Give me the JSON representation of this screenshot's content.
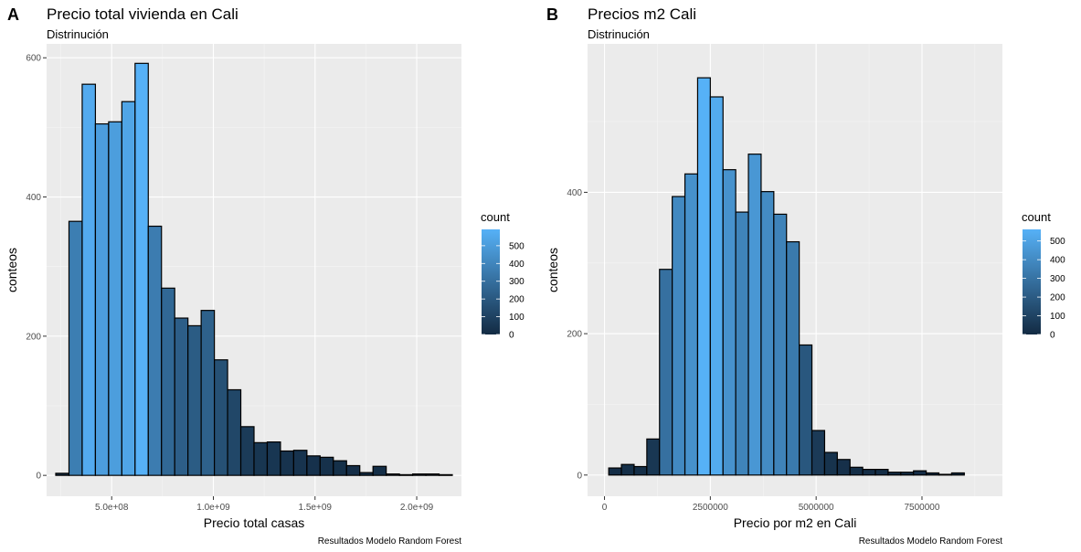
{
  "chart_data": [
    {
      "type": "histogram",
      "panel_label": "A",
      "title": "Precio total vivienda en Cali",
      "subtitle": "Distrinución",
      "xlabel": "Precio total casas",
      "ylabel": "conteos",
      "caption": "Resultados Modelo Random Forest",
      "xlim": [
        180000000,
        2220000000
      ],
      "ylim": [
        -30,
        620
      ],
      "xticks": [
        500000000,
        1000000000,
        1500000000,
        2000000000
      ],
      "xtick_labels": [
        "5.0e+08",
        "1.0e+09",
        "1.5e+09",
        "2.0e+09"
      ],
      "yticks": [
        0,
        200,
        400,
        600
      ],
      "ytick_labels": [
        "0",
        "200",
        "400",
        "600"
      ],
      "bin_width": 65000000,
      "bins_start": 225000000,
      "counts": [
        3,
        365,
        562,
        505,
        508,
        537,
        592,
        358,
        269,
        226,
        215,
        237,
        166,
        123,
        70,
        47,
        48,
        35,
        36,
        28,
        26,
        21,
        14,
        4,
        13,
        2,
        1,
        2,
        2,
        1
      ],
      "legend": {
        "title": "count",
        "labels": [
          "500",
          "400",
          "300",
          "200",
          "100",
          "0"
        ],
        "values": [
          500,
          400,
          300,
          200,
          100,
          0
        ],
        "range": [
          0,
          592
        ]
      },
      "grid": true
    },
    {
      "type": "histogram",
      "panel_label": "B",
      "title": "Precios m2 Cali",
      "subtitle": "Distrinución",
      "xlabel": "Precio por m2 en Cali",
      "ylabel": "conteos",
      "caption": "Resultados Modelo Random Forest",
      "xlim": [
        -400000,
        9400000
      ],
      "ylim": [
        -30,
        610
      ],
      "xticks": [
        0,
        2500000,
        5000000,
        7500000
      ],
      "xtick_labels": [
        "0",
        "2500000",
        "5000000",
        "7500000"
      ],
      "yticks": [
        0,
        200,
        400
      ],
      "ytick_labels": [
        "0",
        "200",
        "400"
      ],
      "bin_width": 300000,
      "bins_start": 100000,
      "counts": [
        10,
        15,
        12,
        51,
        291,
        394,
        426,
        562,
        535,
        432,
        372,
        454,
        401,
        369,
        330,
        184,
        63,
        32,
        22,
        11,
        8,
        8,
        4,
        4,
        6,
        3,
        1,
        3
      ],
      "legend": {
        "title": "count",
        "labels": [
          "500",
          "400",
          "300",
          "200",
          "100",
          "0"
        ],
        "values": [
          500,
          400,
          300,
          200,
          100,
          0
        ],
        "range": [
          0,
          562
        ]
      },
      "grid": true
    }
  ],
  "colors": {
    "panel_background": "#ebebeb",
    "grid_major": "#ffffff",
    "grid_minor": "#f5f5f5",
    "bar_outline": "#000000",
    "gradient_low": "#132B43",
    "gradient_high": "#56B1F7"
  }
}
